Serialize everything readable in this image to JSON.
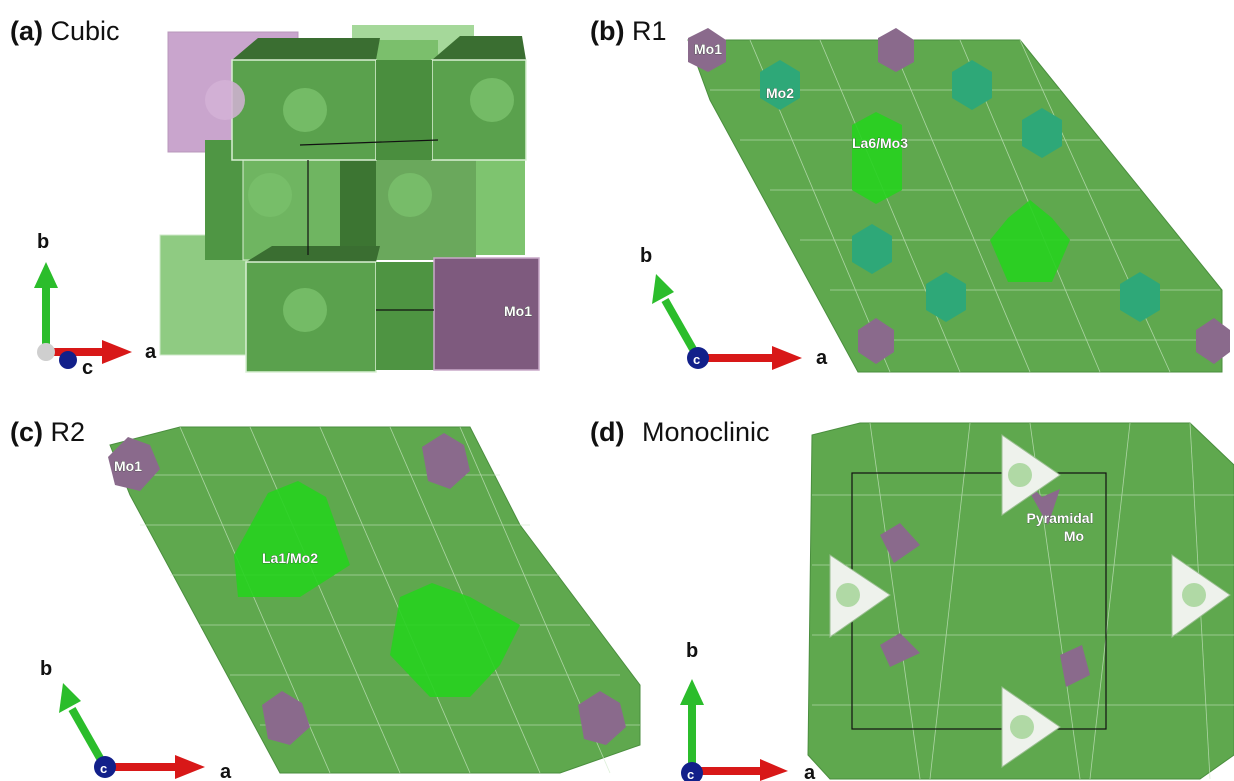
{
  "panels": {
    "a": {
      "letter": "(a)",
      "name": "Cubic",
      "site_labels": [
        "Mo1"
      ],
      "axes": [
        "b",
        "a",
        "c"
      ]
    },
    "b": {
      "letter": "(b)",
      "name": "R1",
      "site_labels": [
        "Mo1",
        "Mo2",
        "La6/Mo3"
      ],
      "axes": [
        "b",
        "a",
        "c"
      ]
    },
    "c": {
      "letter": "(c)",
      "name": "R2",
      "site_labels": [
        "Mo1",
        "La1/Mo2"
      ],
      "axes": [
        "b",
        "a",
        "c"
      ]
    },
    "d": {
      "letter": "(d)",
      "name": "Monoclinic",
      "site_labels": [
        "Pyramidal",
        "Mo"
      ],
      "axes": [
        "b",
        "a",
        "c"
      ]
    }
  },
  "colors": {
    "polyhedron_green": "#5fa84e",
    "polyhedron_dark": "#3f7f34",
    "highlight_green": "#27d11f",
    "teal": "#2ea878",
    "mo1_purple": "#8a6a8c",
    "pyramidal_white": "#eef2ec",
    "axis_b": "#2bbd2b",
    "axis_a": "#d81818",
    "axis_c": "#12208a"
  }
}
